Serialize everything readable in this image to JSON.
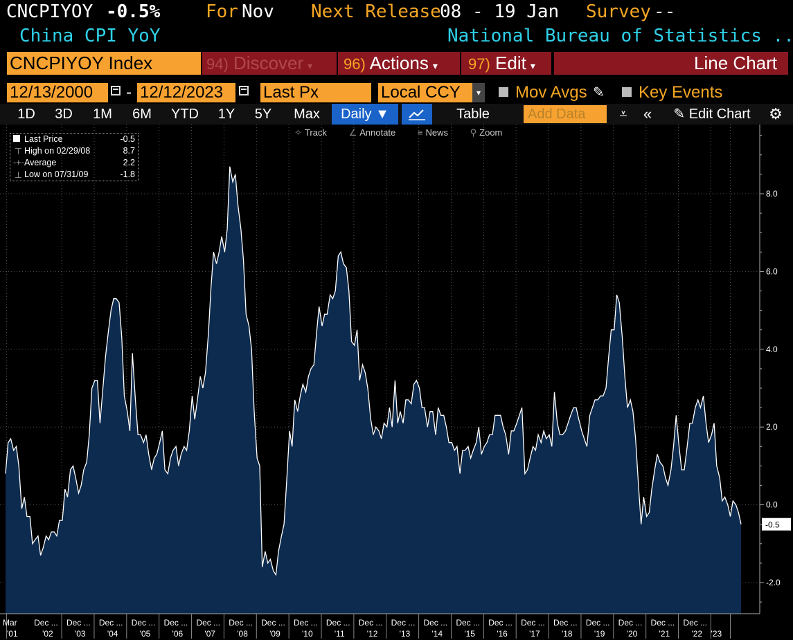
{
  "header": {
    "ticker": "CNCPIYOY",
    "last_value": "-0.5%",
    "for_label": "For",
    "for_value": "Nov",
    "next_release_label": "Next Release",
    "next_release_value": "08 - 19 Jan",
    "survey_label": "Survey",
    "survey_value": "--",
    "description": "China CPI YoY",
    "source": "National Bureau of Statistics ..."
  },
  "menu": {
    "index": "CNCPIYOY Index",
    "discover_num": "94)",
    "discover": "Discover",
    "actions_num": "96)",
    "actions": "Actions",
    "edit_num": "97)",
    "edit": "Edit",
    "chart_type": "Line Chart"
  },
  "controls": {
    "start_date": "12/13/2000",
    "date_sep": "-",
    "end_date": "12/12/2023",
    "field": "Last Px",
    "currency": "Local CCY",
    "mov_avgs": "Mov Avgs",
    "key_events": "Key Events"
  },
  "toolbar": {
    "ranges": [
      "1D",
      "3D",
      "1M",
      "6M",
      "YTD",
      "1Y",
      "5Y",
      "Max"
    ],
    "frequency": "Daily",
    "table": "Table",
    "add_data": "Add Data",
    "edit_chart": "Edit Chart"
  },
  "chart_tools": [
    "Track",
    "Annotate",
    "News",
    "Zoom"
  ],
  "legend": {
    "last_label": "Last Price",
    "last_value": "-0.5",
    "high_label": "High on 02/29/08",
    "high_value": "8.7",
    "avg_label": "Average",
    "avg_value": "2.2",
    "low_label": "Low on 07/31/09",
    "low_value": "-1.8"
  },
  "colors": {
    "accent": "#f7a230",
    "menu_bg": "#8b1821",
    "fill": "#0d2b4f",
    "line": "#ffffff",
    "cyan": "#2fd0e8"
  },
  "chart_data": {
    "type": "area",
    "title": "",
    "xlabel": "",
    "ylabel": "",
    "ylim": [
      -2.8,
      9.5
    ],
    "y_ticks": [
      "8.0",
      "6.0",
      "4.0",
      "2.0",
      "0.0",
      "-2.0"
    ],
    "y_tick_values": [
      8,
      6,
      4,
      2,
      0,
      -2
    ],
    "last_label": "-0.5",
    "x_ticks": [
      {
        "top": "Mar",
        "bottom": "'01",
        "year": 2001.2
      },
      {
        "top": "Dec ...",
        "bottom": "'02",
        "year": 2002.9
      },
      {
        "top": "Dec ...",
        "bottom": "'03",
        "year": 2003.9
      },
      {
        "top": "Dec ...",
        "bottom": "'04",
        "year": 2004.9
      },
      {
        "top": "Dec ...",
        "bottom": "'05",
        "year": 2005.9
      },
      {
        "top": "Dec ...",
        "bottom": "'06",
        "year": 2006.9
      },
      {
        "top": "Dec ...",
        "bottom": "'07",
        "year": 2007.9
      },
      {
        "top": "Dec ...",
        "bottom": "'08",
        "year": 2008.9
      },
      {
        "top": "Dec ...",
        "bottom": "'09",
        "year": 2009.9
      },
      {
        "top": "Dec ...",
        "bottom": "'10",
        "year": 2010.9
      },
      {
        "top": "Dec ...",
        "bottom": "'11",
        "year": 2011.9
      },
      {
        "top": "Dec ...",
        "bottom": "'12",
        "year": 2012.9
      },
      {
        "top": "Dec ...",
        "bottom": "'13",
        "year": 2013.9
      },
      {
        "top": "Dec ...",
        "bottom": "'14",
        "year": 2014.9
      },
      {
        "top": "Dec ...",
        "bottom": "'15",
        "year": 2015.9
      },
      {
        "top": "Dec ...",
        "bottom": "'16",
        "year": 2016.9
      },
      {
        "top": "Dec ...",
        "bottom": "'17",
        "year": 2017.9
      },
      {
        "top": "Dec ...",
        "bottom": "'18",
        "year": 2018.9
      },
      {
        "top": "Dec ...",
        "bottom": "'19",
        "year": 2019.9
      },
      {
        "top": "Dec ...",
        "bottom": "'20",
        "year": 2020.9
      },
      {
        "top": "Dec ...",
        "bottom": "'21",
        "year": 2021.9
      },
      {
        "top": "Dec ...",
        "bottom": "'22",
        "year": 2022.9
      },
      {
        "top": "",
        "bottom": "'23",
        "year": 2023.5
      }
    ],
    "series": [
      {
        "x": [
          2001.17,
          2001.25,
          2001.33,
          2001.42,
          2001.5,
          2001.58,
          2001.67,
          2001.75,
          2001.83,
          2001.92,
          2002.0,
          2002.08,
          2002.17,
          2002.25,
          2002.33,
          2002.42,
          2002.5,
          2002.58,
          2002.67,
          2002.75,
          2002.83,
          2002.92,
          2003.0,
          2003.08,
          2003.17,
          2003.25,
          2003.33,
          2003.42,
          2003.5,
          2003.58,
          2003.67,
          2003.75,
          2003.83,
          2003.92,
          2004.0,
          2004.08,
          2004.17,
          2004.25,
          2004.33,
          2004.42,
          2004.5,
          2004.58,
          2004.67,
          2004.75,
          2004.83,
          2004.92,
          2005.0,
          2005.08,
          2005.17,
          2005.25,
          2005.33,
          2005.42,
          2005.5,
          2005.58,
          2005.67,
          2005.75,
          2005.83,
          2005.92,
          2006.0,
          2006.08,
          2006.17,
          2006.25,
          2006.33,
          2006.42,
          2006.5,
          2006.58,
          2006.67,
          2006.75,
          2006.83,
          2006.92,
          2007.0,
          2007.08,
          2007.17,
          2007.25,
          2007.33,
          2007.42,
          2007.5,
          2007.58,
          2007.67,
          2007.75,
          2007.83,
          2007.92,
          2008.0,
          2008.08,
          2008.17,
          2008.25,
          2008.33,
          2008.42,
          2008.5,
          2008.58,
          2008.67,
          2008.75,
          2008.83,
          2008.92,
          2009.0,
          2009.08,
          2009.17,
          2009.25,
          2009.33,
          2009.42,
          2009.5,
          2009.58,
          2009.67,
          2009.75,
          2009.83,
          2009.92,
          2010.0,
          2010.08,
          2010.17,
          2010.25,
          2010.33,
          2010.42,
          2010.5,
          2010.58,
          2010.67,
          2010.75,
          2010.83,
          2010.92,
          2011.0,
          2011.08,
          2011.17,
          2011.25,
          2011.33,
          2011.42,
          2011.5,
          2011.58,
          2011.67,
          2011.75,
          2011.83,
          2011.92,
          2012.0,
          2012.08,
          2012.17,
          2012.25,
          2012.33,
          2012.42,
          2012.5,
          2012.58,
          2012.67,
          2012.75,
          2012.83,
          2012.92,
          2013.0,
          2013.08,
          2013.17,
          2013.25,
          2013.33,
          2013.42,
          2013.5,
          2013.58,
          2013.67,
          2013.75,
          2013.83,
          2013.92,
          2014.0,
          2014.08,
          2014.17,
          2014.25,
          2014.33,
          2014.42,
          2014.5,
          2014.58,
          2014.67,
          2014.75,
          2014.83,
          2014.92,
          2015.0,
          2015.08,
          2015.17,
          2015.25,
          2015.33,
          2015.42,
          2015.5,
          2015.58,
          2015.67,
          2015.75,
          2015.83,
          2015.92,
          2016.0,
          2016.08,
          2016.17,
          2016.25,
          2016.33,
          2016.42,
          2016.5,
          2016.58,
          2016.67,
          2016.75,
          2016.83,
          2016.92,
          2017.0,
          2017.08,
          2017.17,
          2017.25,
          2017.33,
          2017.42,
          2017.5,
          2017.58,
          2017.67,
          2017.75,
          2017.83,
          2017.92,
          2018.0,
          2018.08,
          2018.17,
          2018.25,
          2018.33,
          2018.42,
          2018.5,
          2018.58,
          2018.67,
          2018.75,
          2018.83,
          2018.92,
          2019.0,
          2019.08,
          2019.17,
          2019.25,
          2019.33,
          2019.42,
          2019.5,
          2019.58,
          2019.67,
          2019.75,
          2019.83,
          2019.92,
          2020.0,
          2020.08,
          2020.17,
          2020.25,
          2020.33,
          2020.42,
          2020.5,
          2020.58,
          2020.67,
          2020.75,
          2020.83,
          2020.92,
          2021.0,
          2021.08,
          2021.17,
          2021.25,
          2021.33,
          2021.42,
          2021.5,
          2021.58,
          2021.67,
          2021.75,
          2021.83,
          2021.92,
          2022.0,
          2022.08,
          2022.17,
          2022.25,
          2022.33,
          2022.42,
          2022.5,
          2022.58,
          2022.67,
          2022.75,
          2022.83,
          2022.92,
          2023.0,
          2023.08,
          2023.17,
          2023.25,
          2023.33,
          2023.42,
          2023.5,
          2023.58,
          2023.67,
          2023.75,
          2023.83
        ],
        "values": [
          0.8,
          1.6,
          1.7,
          1.4,
          1.5,
          1.0,
          -0.1,
          0.2,
          -0.3,
          -0.3,
          -1.0,
          -0.9,
          -0.8,
          -1.3,
          -1.1,
          -0.8,
          -0.9,
          -0.7,
          -0.7,
          -0.8,
          -0.4,
          -0.4,
          0.4,
          0.2,
          0.9,
          1.0,
          0.7,
          0.3,
          0.5,
          0.9,
          1.1,
          1.8,
          3.0,
          3.2,
          3.2,
          2.1,
          3.0,
          3.8,
          4.4,
          5.0,
          5.3,
          5.3,
          5.2,
          4.3,
          2.8,
          2.4,
          1.9,
          3.9,
          2.7,
          1.8,
          1.8,
          1.6,
          1.8,
          1.3,
          0.9,
          1.2,
          1.3,
          1.6,
          1.9,
          0.9,
          0.8,
          1.2,
          1.4,
          1.5,
          1.0,
          1.3,
          1.5,
          1.4,
          1.9,
          2.8,
          2.2,
          2.7,
          3.3,
          3.0,
          3.4,
          4.4,
          5.6,
          6.5,
          6.2,
          6.5,
          6.9,
          6.5,
          7.1,
          8.7,
          8.3,
          8.5,
          7.7,
          7.1,
          6.3,
          4.9,
          4.6,
          4.0,
          2.4,
          1.2,
          1.0,
          -1.6,
          -1.2,
          -1.5,
          -1.4,
          -1.7,
          -1.8,
          -1.2,
          -0.8,
          -0.5,
          0.6,
          1.9,
          1.5,
          2.7,
          2.4,
          2.8,
          3.1,
          2.9,
          3.3,
          3.5,
          3.6,
          4.4,
          5.1,
          4.6,
          4.9,
          4.9,
          5.4,
          5.3,
          5.5,
          6.4,
          6.5,
          6.2,
          6.1,
          5.5,
          4.2,
          4.1,
          4.5,
          3.2,
          3.6,
          3.4,
          3.0,
          2.2,
          1.8,
          2.0,
          1.9,
          1.7,
          2.1,
          2.0,
          2.5,
          2.0,
          3.2,
          2.1,
          2.4,
          2.1,
          2.7,
          2.7,
          2.6,
          3.1,
          3.2,
          3.0,
          2.5,
          2.5,
          2.0,
          2.4,
          2.4,
          1.8,
          2.5,
          2.3,
          2.3,
          2.0,
          1.6,
          1.6,
          1.4,
          1.5,
          0.8,
          1.4,
          1.4,
          1.5,
          1.2,
          1.4,
          1.6,
          2.0,
          1.3,
          1.5,
          1.6,
          1.8,
          1.8,
          2.3,
          2.3,
          2.3,
          2.0,
          1.8,
          1.3,
          1.9,
          1.9,
          2.1,
          2.3,
          2.5,
          0.8,
          0.9,
          1.2,
          1.5,
          1.4,
          1.8,
          1.6,
          1.9,
          1.7,
          1.8,
          1.5,
          2.9,
          2.1,
          1.8,
          1.8,
          1.9,
          2.1,
          2.3,
          2.5,
          2.5,
          2.2,
          1.9,
          1.7,
          1.5,
          2.3,
          2.5,
          2.7,
          2.7,
          2.8,
          2.8,
          3.0,
          3.8,
          4.5,
          4.5,
          5.4,
          5.2,
          4.3,
          3.3,
          2.5,
          2.7,
          2.4,
          1.7,
          0.5,
          -0.5,
          0.2,
          -0.3,
          -0.2,
          0.4,
          0.9,
          1.3,
          1.1,
          1.0,
          0.7,
          0.5,
          0.9,
          1.5,
          2.3,
          1.5,
          0.9,
          0.9,
          1.5,
          2.1,
          2.1,
          2.5,
          2.7,
          2.5,
          2.8,
          2.1,
          1.6,
          1.8,
          2.1,
          1.0,
          0.7,
          0.1,
          0.2,
          0.0,
          -0.3,
          0.1,
          0.0,
          -0.2,
          -0.5
        ]
      }
    ]
  }
}
